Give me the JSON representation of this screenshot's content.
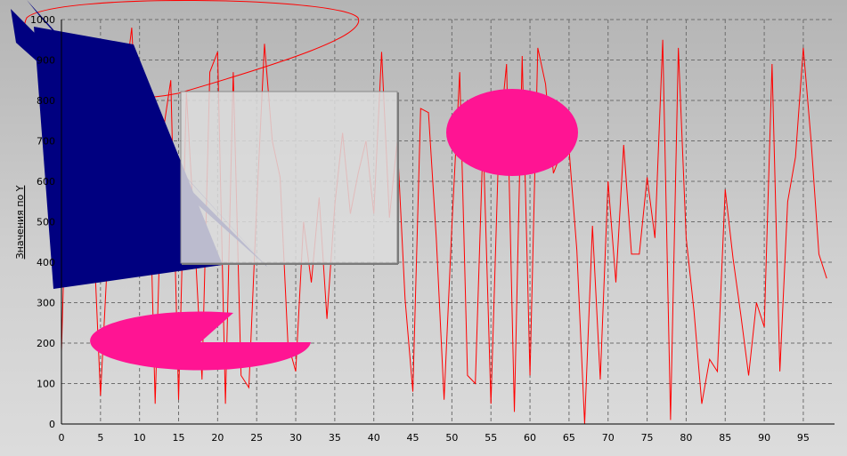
{
  "colors": {
    "background": "#c3c3c3",
    "grid": "#6e6e6e",
    "series": "#ff0000",
    "triangle": "#000080",
    "magenta": "#ff1493",
    "panel": "#dcdcdc"
  },
  "chart_data": {
    "type": "line",
    "title": "",
    "xlabel": "",
    "ylabel": "Значения по Y",
    "xlim": [
      0,
      99
    ],
    "ylim": [
      0,
      1000
    ],
    "grid": true,
    "x_ticks": [
      0,
      5,
      10,
      15,
      20,
      25,
      30,
      35,
      40,
      45,
      50,
      55,
      60,
      65,
      70,
      75,
      80,
      85,
      90,
      95
    ],
    "y_ticks": [
      0,
      100,
      200,
      300,
      400,
      500,
      600,
      700,
      800,
      900,
      1000
    ],
    "series": [
      {
        "values": [
          180,
          850,
          870,
          520,
          520,
          70,
          450,
          650,
          820,
          980,
          600,
          830,
          50,
          720,
          850,
          60,
          820,
          480,
          110,
          870,
          920,
          50,
          870,
          120,
          90,
          540,
          940,
          700,
          610,
          200,
          130,
          500,
          350,
          560,
          260,
          540,
          720,
          520,
          620,
          700,
          520,
          920,
          510,
          700,
          310,
          80,
          780,
          770,
          460,
          60,
          490,
          870,
          120,
          100,
          710,
          50,
          690,
          890,
          30,
          910,
          120,
          930,
          840,
          620,
          670,
          680,
          430,
          0,
          490,
          110,
          600,
          350,
          690,
          420,
          420,
          610,
          460,
          950,
          10,
          930,
          460,
          280,
          50,
          160,
          130,
          580,
          410,
          270,
          120,
          300,
          240,
          890,
          130,
          550,
          660,
          930,
          700,
          420,
          360
        ]
      }
    ]
  },
  "shapes": [
    {
      "kind": "polygon",
      "color": "#000080",
      "name": "blue-triangle"
    },
    {
      "kind": "polygon",
      "color": "#000080",
      "name": "blue-sliver"
    },
    {
      "kind": "ellipse",
      "color": "#ff1493",
      "name": "magenta-ellipse"
    },
    {
      "kind": "pie",
      "color": "#ff1493",
      "name": "magenta-pie"
    },
    {
      "kind": "rect",
      "color": "#dcdcdc",
      "name": "grey-panel"
    }
  ]
}
